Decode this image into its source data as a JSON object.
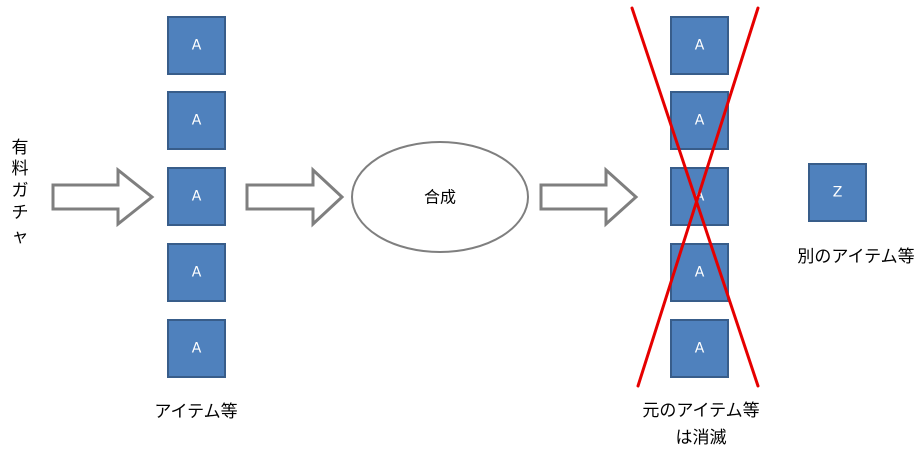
{
  "source_label_chars": [
    "有",
    "料",
    "ガ",
    "チ",
    "ャ"
  ],
  "stack_left": {
    "items": [
      "A",
      "A",
      "A",
      "A",
      "A"
    ],
    "caption": "アイテム等"
  },
  "process": {
    "label": "合成"
  },
  "stack_right": {
    "items": [
      "A",
      "A",
      "A",
      "A",
      "A"
    ],
    "caption_lines": [
      "元のアイテム等",
      "は消滅"
    ],
    "crossed_out": true
  },
  "result": {
    "item": "Z",
    "caption": "別のアイテム等"
  },
  "colors": {
    "box_fill": "#4F81BD",
    "box_stroke": "#385D8A",
    "arrow_stroke": "#7F7F7F",
    "cross": "#E60000"
  }
}
